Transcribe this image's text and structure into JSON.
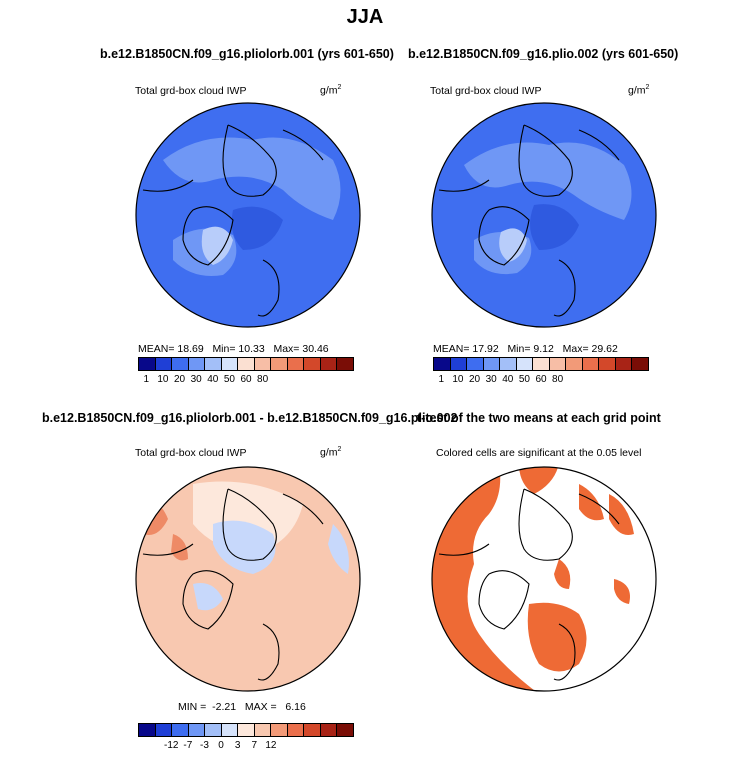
{
  "page_title": "JJA",
  "panels": [
    {
      "title": "b.e12.B1850CN.f09_g16.pliolorb.001 (yrs 601-650)",
      "subtitle": "Total grd-box cloud IWP",
      "units_base": "g/m",
      "units_exp": "2",
      "mean_label": "MEAN=",
      "mean": "18.69",
      "min_label": "Min=",
      "min": "10.33",
      "max_label": "Max=",
      "max": "30.46",
      "colorbar_ticks": [
        "1",
        "10",
        "20",
        "30",
        "40",
        "50",
        "60",
        "80"
      ]
    },
    {
      "title": "b.e12.B1850CN.f09_g16.plio.002 (yrs 601-650)",
      "subtitle": "Total grd-box cloud IWP",
      "units_base": "g/m",
      "units_exp": "2",
      "mean_label": "MEAN=",
      "mean": "17.92",
      "min_label": "Min=",
      "min": "9.12",
      "max_label": "Max=",
      "max": "29.62",
      "colorbar_ticks": [
        "1",
        "10",
        "20",
        "30",
        "40",
        "50",
        "60",
        "80"
      ]
    },
    {
      "title": "b.e12.B1850CN.f09_g16.pliolorb.001 - b.e12.B1850CN.f09_g16.plio.002",
      "subtitle": "Total grd-box cloud IWP",
      "units_base": "g/m",
      "units_exp": "2",
      "min_label": "MIN =",
      "min": "-2.21",
      "max_label": "MAX =",
      "max": "6.16",
      "colorbar_ticks": [
        "-12",
        "-7",
        "-3",
        "0",
        "3",
        "7",
        "12"
      ]
    },
    {
      "title": "t-test of the two means at each grid point",
      "subtitle": "Colored cells are significant at the 0.05 level"
    }
  ],
  "colors": {
    "abs_scale": [
      "#08088a",
      "#1f3fd6",
      "#3e6df0",
      "#6f97f5",
      "#a3bff8",
      "#d6e3fb",
      "#fbe0d2",
      "#f7bea6",
      "#f29a78",
      "#ea6f4c",
      "#d3482a",
      "#a82316",
      "#7a0d06"
    ],
    "diff_scale": [
      "#08088a",
      "#1f3fd6",
      "#3e6df0",
      "#6f97f5",
      "#a3bff8",
      "#d6e3fb",
      "#fde8dc",
      "#f8c8b0",
      "#f29a78",
      "#ea6f4c",
      "#d3482a",
      "#a82316",
      "#7a0d06"
    ],
    "map_blue": "#3f6ef0",
    "map_blue_light": "#6f97f5",
    "map_blue_pale": "#b8cdfa",
    "diff_base": "#f8c8b0",
    "diff_pale": "#fde8dc",
    "diff_blue": "#c7d8fb",
    "diff_red": "#ee8a66",
    "sig_color": "#ee6a35"
  }
}
